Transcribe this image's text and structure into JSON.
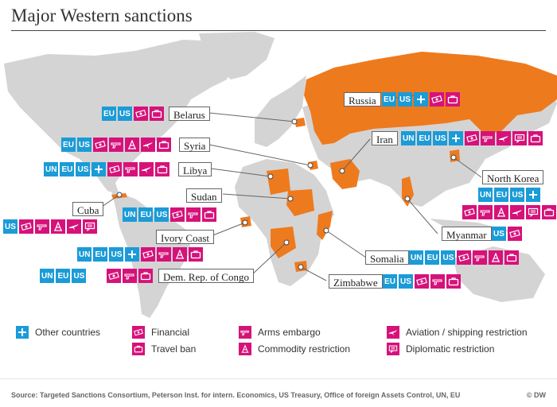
{
  "title": "Major Western sanctions",
  "colors": {
    "sanctioned": "#ee7a1e",
    "land": "#d4d4d4",
    "blue": "#1b9bd7",
    "pink": "#d6127a"
  },
  "countries": [
    {
      "key": "russia",
      "label": "Russia",
      "tags": [
        "EU",
        "US"
      ],
      "icons": [
        "other",
        "financial",
        "travel"
      ]
    },
    {
      "key": "belarus",
      "label": "Belarus",
      "tags": [
        "EU",
        "US"
      ],
      "icons": [
        "financial",
        "travel"
      ]
    },
    {
      "key": "syria",
      "label": "Syria",
      "tags": [
        "EU",
        "US"
      ],
      "icons": [
        "financial",
        "arms",
        "commodity",
        "aviation",
        "travel"
      ]
    },
    {
      "key": "libya",
      "label": "Libya",
      "tags": [
        "UN",
        "EU",
        "US"
      ],
      "icons": [
        "other",
        "financial",
        "arms",
        "aviation",
        "travel"
      ]
    },
    {
      "key": "iran",
      "label": "Iran",
      "tags": [
        "UN",
        "EU",
        "US"
      ],
      "icons": [
        "other",
        "financial",
        "arms",
        "aviation",
        "diplomatic",
        "travel"
      ]
    },
    {
      "key": "north_korea",
      "label": "North Korea",
      "tags": [
        "UN",
        "EU",
        "US"
      ],
      "icons": [
        "other",
        "financial",
        "arms",
        "commodity",
        "aviation",
        "diplomatic",
        "travel"
      ]
    },
    {
      "key": "sudan",
      "label": "Sudan",
      "tags": [
        "UN",
        "EU",
        "US"
      ],
      "icons": [
        "financial",
        "arms",
        "travel"
      ]
    },
    {
      "key": "cuba",
      "label": "Cuba",
      "tags": [
        "US"
      ],
      "icons": [
        "financial",
        "arms",
        "commodity",
        "aviation",
        "diplomatic"
      ]
    },
    {
      "key": "ivory_coast",
      "label": "Ivory Coast",
      "tags": [
        "UN",
        "EU",
        "US"
      ],
      "icons": [
        "other",
        "financial",
        "arms",
        "commodity",
        "travel"
      ]
    },
    {
      "key": "myanmar",
      "label": "Myanmar",
      "tags": [
        "US"
      ],
      "icons": [
        "financial"
      ]
    },
    {
      "key": "somalia",
      "label": "Somalia",
      "tags": [
        "UN",
        "EU",
        "US"
      ],
      "icons": [
        "financial",
        "arms",
        "commodity",
        "travel"
      ]
    },
    {
      "key": "drc",
      "label": "Dem. Rep. of Congo",
      "tags": [
        "UN",
        "EU",
        "US"
      ],
      "icons": [
        "financial",
        "arms",
        "travel"
      ]
    },
    {
      "key": "zimbabwe",
      "label": "Zimbabwe",
      "tags": [
        "EU",
        "US"
      ],
      "icons": [
        "financial",
        "arms",
        "travel"
      ]
    }
  ],
  "legend": {
    "other": "Other  countries",
    "financial": "Financial",
    "travel": "Travel ban",
    "arms": "Arms embargo",
    "commodity": "Commodity restriction",
    "aviation": "Aviation / shipping restriction",
    "diplomatic": "Diplomatic restriction"
  },
  "source": "Source: Targeted Sanctions Consortium, Peterson Inst. for intern. Economics, US Treasury, Office of foreign Assets Control, UN, EU",
  "credit": "© DW"
}
